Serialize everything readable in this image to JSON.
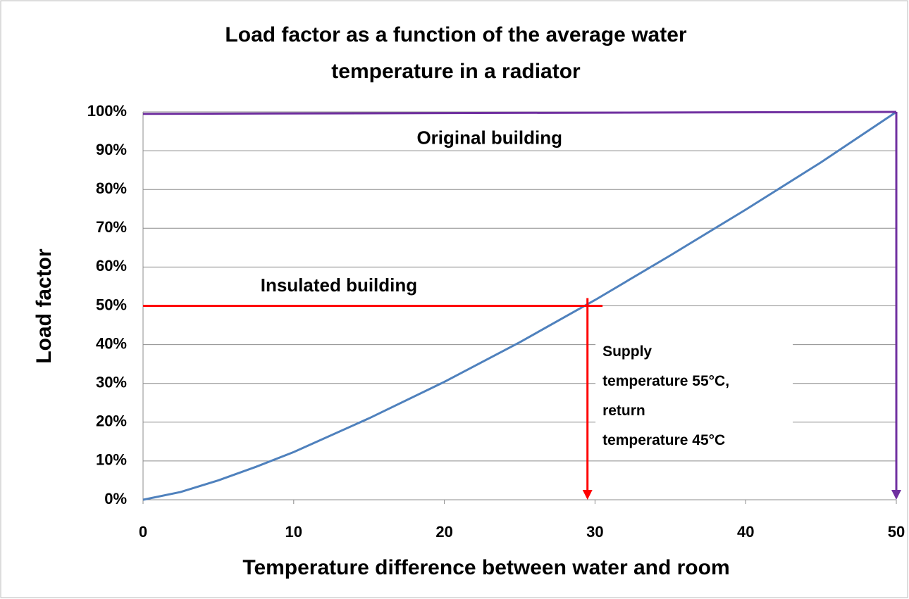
{
  "chart_data": {
    "type": "line",
    "title": [
      "Load factor as a function of the average water",
      "temperature in a radiator"
    ],
    "x_label": "Temperature difference between water and room",
    "y_label": "Load factor",
    "x": [
      0,
      2.5,
      5,
      7.5,
      10,
      15,
      20,
      25,
      30,
      35,
      40,
      45,
      50
    ],
    "series": [
      {
        "color": "#4f81bd",
        "values": [
          0,
          2,
          5,
          8.5,
          12.3,
          21,
          30.4,
          40.6,
          51.5,
          63,
          74.8,
          87,
          100
        ]
      }
    ],
    "xlim": [
      0,
      50
    ],
    "xticks": [
      0,
      10,
      20,
      30,
      40,
      50
    ],
    "ylim": [
      0,
      100
    ],
    "yticks": [
      {
        "value": 0,
        "label": "0%"
      },
      {
        "value": 10,
        "label": "10%"
      },
      {
        "value": 20,
        "label": "20%"
      },
      {
        "value": 30,
        "label": "30%"
      },
      {
        "value": 40,
        "label": "40%"
      },
      {
        "value": 50,
        "label": "50%"
      },
      {
        "value": 60,
        "label": "60%"
      },
      {
        "value": 70,
        "label": "70%"
      },
      {
        "value": 80,
        "label": "80%"
      },
      {
        "value": 90,
        "label": "90%"
      },
      {
        "value": 100,
        "label": "100%"
      }
    ],
    "grid": true,
    "guides": [
      {
        "color": "#ff0000",
        "x": [
          0,
          30.5
        ],
        "y": [
          50,
          50
        ],
        "arrow": false
      },
      {
        "color": "#ff0000",
        "x": [
          29.5,
          29.5
        ],
        "y": [
          52,
          0
        ],
        "arrow": true
      },
      {
        "color": "#7030a0",
        "x": [
          0,
          50
        ],
        "y": [
          99.5,
          100
        ],
        "arrow": false
      },
      {
        "color": "#7030a0",
        "x": [
          50,
          50
        ],
        "y": [
          100,
          0
        ],
        "arrow": true
      }
    ],
    "annotations": [
      {
        "text": "Original building",
        "x": 23,
        "y": 93
      },
      {
        "text": "Insulated building",
        "x": 13,
        "y": 55
      }
    ],
    "note": {
      "lines": [
        "Supply",
        "temperature 55°C,",
        "return",
        "temperature 45°C"
      ],
      "x": 30.5,
      "y": 38
    }
  }
}
